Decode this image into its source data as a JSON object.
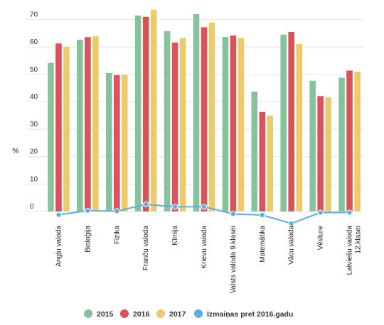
{
  "chart_data": {
    "type": "bar",
    "ylabel": "%",
    "ylim": [
      0,
      73
    ],
    "yticks": [
      0,
      10,
      20,
      30,
      40,
      50,
      60,
      70
    ],
    "grid": true,
    "legend_position": "bottom",
    "categories": [
      "Angļu valoda",
      "Bioloģija",
      "Fizika",
      "Franču valoda",
      "Ķīmija",
      "Krievu valoda",
      "Valsts valoda 9.klasei",
      "Matemātika",
      "Vācu valoda",
      "Vēsture",
      "Latviešu valoda 12.klasei"
    ],
    "series": [
      {
        "name": "2015",
        "type": "bar",
        "color": "#86c29b",
        "values": [
          54.2,
          62.6,
          50.5,
          71.5,
          65.8,
          72.0,
          63.7,
          43.7,
          64.5,
          47.7,
          48.8
        ]
      },
      {
        "name": "2016",
        "type": "bar",
        "color": "#d9535a",
        "values": [
          61.3,
          63.6,
          49.7,
          71.0,
          61.6,
          67.2,
          64.2,
          36.3,
          65.5,
          42.1,
          51.4
        ]
      },
      {
        "name": "2017",
        "type": "bar",
        "color": "#eccb6d",
        "values": [
          60.1,
          63.9,
          49.8,
          73.6,
          63.3,
          68.9,
          63.3,
          35.0,
          61.1,
          41.7,
          51.0
        ]
      },
      {
        "name": "Izmaiņas pret 2016.gadu",
        "type": "line",
        "color": "#5ab1e0",
        "values": [
          -1.2,
          0.3,
          0.1,
          2.6,
          1.7,
          1.7,
          -0.9,
          -1.3,
          -4.4,
          -0.4,
          -0.4
        ]
      }
    ]
  }
}
